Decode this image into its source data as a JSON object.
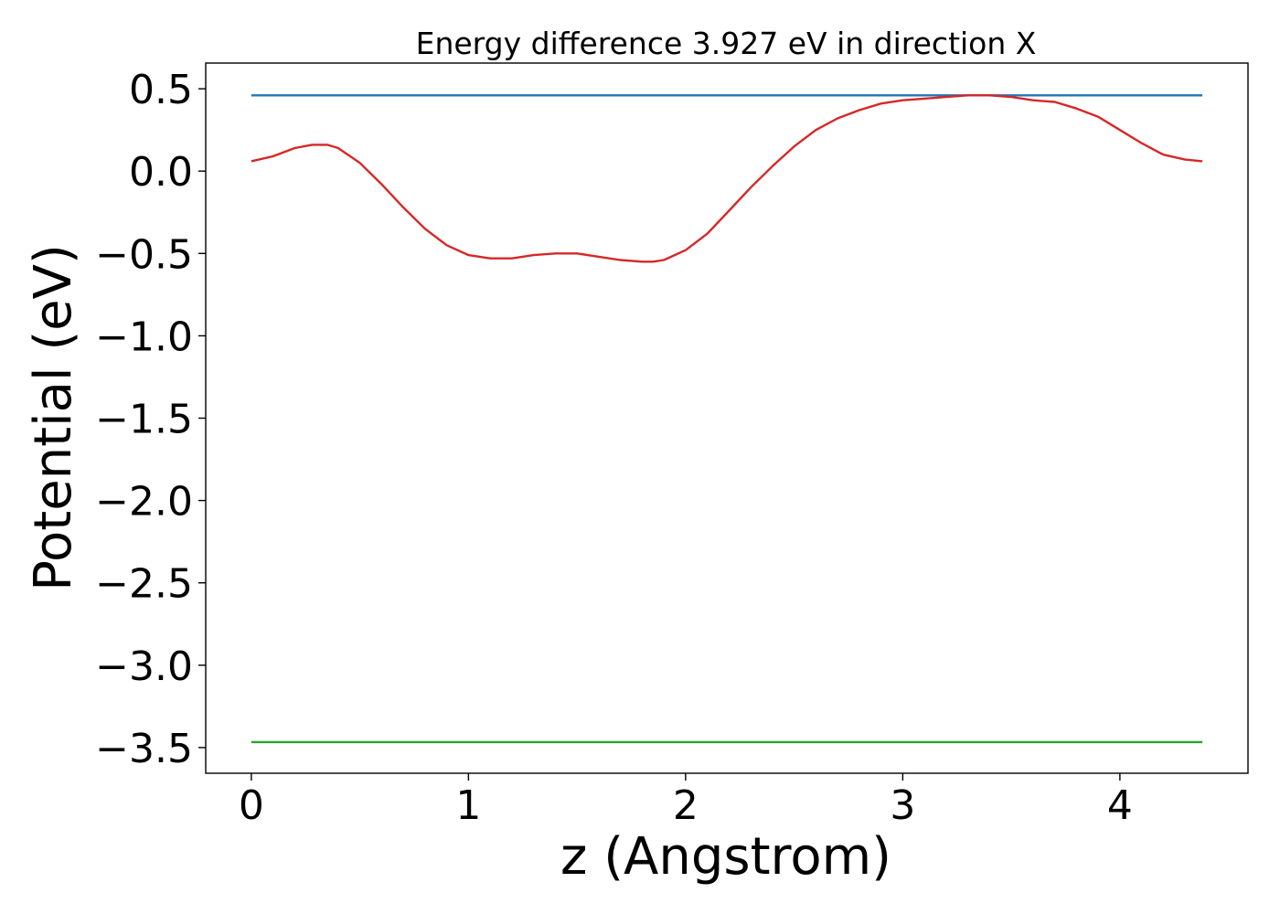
{
  "chart_data": {
    "type": "line",
    "title": "Energy difference 3.927 eV in direction X",
    "xlabel": "z (Angstrom)",
    "ylabel": "Potential (eV)",
    "xlim": [
      -0.21,
      4.59
    ],
    "ylim": [
      -3.656,
      0.656
    ],
    "xticks": [
      0,
      1,
      2,
      3,
      4
    ],
    "xtick_labels": [
      "0",
      "1",
      "2",
      "3",
      "4"
    ],
    "yticks": [
      0.5,
      0.0,
      -0.5,
      -1.0,
      -1.5,
      -2.0,
      -2.5,
      -3.0,
      -3.5
    ],
    "ytick_labels": [
      "0.5",
      "0.0",
      "−0.5",
      "−1.0",
      "−1.5",
      "−2.0",
      "−2.5",
      "−3.0",
      "−3.5"
    ],
    "grid": false,
    "series": [
      {
        "color": "#1f77b4",
        "x": [
          0,
          4.38
        ],
        "y": [
          0.46,
          0.46
        ]
      },
      {
        "color": "#d62728",
        "x": [
          0,
          0.1,
          0.2,
          0.28,
          0.35,
          0.4,
          0.5,
          0.6,
          0.7,
          0.8,
          0.9,
          1.0,
          1.1,
          1.2,
          1.3,
          1.4,
          1.5,
          1.6,
          1.7,
          1.8,
          1.85,
          1.9,
          2.0,
          2.1,
          2.2,
          2.3,
          2.4,
          2.5,
          2.6,
          2.7,
          2.8,
          2.9,
          3.0,
          3.1,
          3.2,
          3.3,
          3.4,
          3.5,
          3.6,
          3.7,
          3.8,
          3.9,
          4.0,
          4.1,
          4.2,
          4.3,
          4.38
        ],
        "y": [
          0.06,
          0.09,
          0.14,
          0.16,
          0.16,
          0.14,
          0.05,
          -0.08,
          -0.22,
          -0.35,
          -0.45,
          -0.51,
          -0.53,
          -0.53,
          -0.51,
          -0.5,
          -0.5,
          -0.52,
          -0.54,
          -0.55,
          -0.55,
          -0.54,
          -0.48,
          -0.38,
          -0.24,
          -0.1,
          0.03,
          0.15,
          0.25,
          0.32,
          0.37,
          0.41,
          0.43,
          0.44,
          0.45,
          0.46,
          0.46,
          0.45,
          0.43,
          0.42,
          0.38,
          0.33,
          0.25,
          0.17,
          0.1,
          0.07,
          0.06
        ]
      },
      {
        "color": "#2ca02c",
        "x": [
          0,
          4.38
        ],
        "y": [
          -3.467,
          -3.467
        ]
      }
    ]
  }
}
